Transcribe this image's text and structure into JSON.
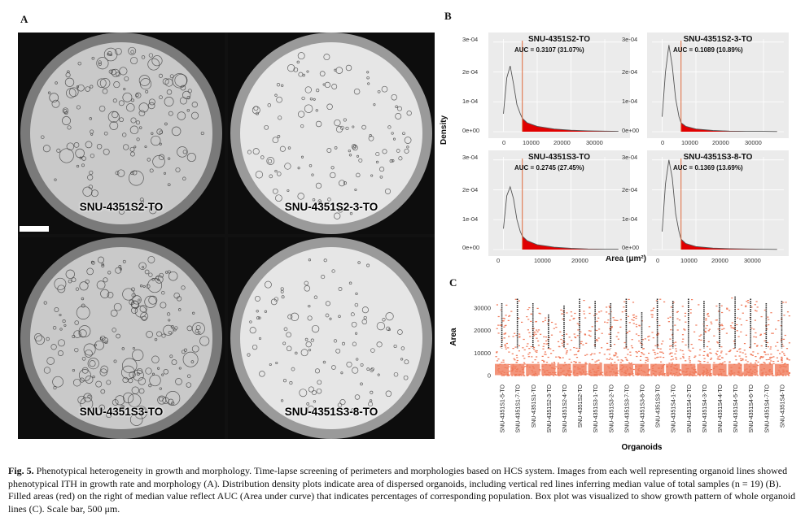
{
  "panel_letters": {
    "a": "A",
    "b": "B",
    "c": "C"
  },
  "wells": [
    {
      "label": "SNU-4351S2-TO",
      "density": 150,
      "bright": false
    },
    {
      "label": "SNU-4351S2-3-TO",
      "density": 120,
      "bright": true
    },
    {
      "label": "SNU-4351S3-TO",
      "density": 190,
      "bright": false
    },
    {
      "label": "SNU-4351S3-8-TO",
      "density": 110,
      "bright": true
    }
  ],
  "density_plots": {
    "y_label": "Density",
    "x_label": "Area (μm²)",
    "y_ticks": [
      "3e-04",
      "2e-04",
      "1e-04",
      "0e+00"
    ],
    "x_ticks": [
      "0",
      "10000",
      "20000",
      "30000"
    ],
    "plots": [
      {
        "title": "SNU-4351S2-TO",
        "auc": "AUC = 0.3107 (31.07%)"
      },
      {
        "title": "SNU-4351S2-3-TO",
        "auc": "AUC = 0.1089 (10.89%)"
      },
      {
        "title": "SNU-4351S3-TO",
        "auc": "AUC = 0.2745 (27.45%)"
      },
      {
        "title": "SNU-4351S3-8-TO",
        "auc": "AUC = 0.1369 (13.69%)"
      }
    ]
  },
  "chart_data": [
    {
      "type": "area",
      "title": "SNU-4351S2-TO",
      "annotation": "AUC = 0.3107 (31.07%)",
      "xlabel": "Area (μm²)",
      "ylabel": "Density",
      "xlim": [
        -3000,
        36000
      ],
      "ylim": [
        0,
        0.00031
      ],
      "median": 5600,
      "x": [
        0,
        1000,
        2000,
        3000,
        4000,
        5000,
        5600,
        7000,
        10000,
        15000,
        20000,
        25000,
        30000,
        34000
      ],
      "y": [
        6e-05,
        0.00018,
        0.00022,
        0.00016,
        9e-05,
        6e-05,
        4.5e-05,
        3e-05,
        1.8e-05,
        9e-06,
        5e-06,
        3e-06,
        2e-06,
        1e-06
      ]
    },
    {
      "type": "area",
      "title": "SNU-4351S2-3-TO",
      "annotation": "AUC = 0.1089 (10.89%)",
      "xlabel": "Area (μm²)",
      "ylabel": "Density",
      "xlim": [
        -3000,
        36000
      ],
      "ylim": [
        0,
        0.00031
      ],
      "median": 5600,
      "x": [
        0,
        1000,
        2000,
        3000,
        4000,
        5000,
        5600,
        7000,
        10000,
        15000,
        20000,
        25000,
        30000,
        34000
      ],
      "y": [
        5e-05,
        0.0002,
        0.00029,
        0.00022,
        0.00011,
        5e-05,
        3e-05,
        1.8e-05,
        9e-06,
        4e-06,
        2e-06,
        1e-06,
        1e-06,
        5e-07
      ]
    },
    {
      "type": "area",
      "title": "SNU-4351S3-TO",
      "annotation": "AUC = 0.2745 (27.45%)",
      "xlabel": "Area (μm²)",
      "ylabel": "Density",
      "xlim": [
        -3000,
        36000
      ],
      "ylim": [
        0,
        0.00031
      ],
      "median": 5600,
      "x": [
        0,
        1000,
        2000,
        3000,
        4000,
        5000,
        5600,
        7000,
        10000,
        15000,
        20000,
        25000,
        30000,
        34000
      ],
      "y": [
        7e-05,
        0.00018,
        0.00021,
        0.00017,
        0.0001,
        6e-05,
        4.5e-05,
        3e-05,
        1.6e-05,
        8e-06,
        4e-06,
        2e-06,
        1e-06,
        1e-06
      ]
    },
    {
      "type": "area",
      "title": "SNU-4351S3-8-TO",
      "annotation": "AUC = 0.1369 (13.69%)",
      "xlabel": "Area (μm²)",
      "ylabel": "Density",
      "xlim": [
        -3000,
        36000
      ],
      "ylim": [
        0,
        0.00031
      ],
      "median": 5600,
      "x": [
        0,
        1000,
        2000,
        3000,
        4000,
        5000,
        5600,
        7000,
        10000,
        15000,
        20000,
        25000,
        30000,
        34000
      ],
      "y": [
        6e-05,
        0.00022,
        0.0003,
        0.00024,
        0.00012,
        6e-05,
        3.5e-05,
        2e-05,
        1e-05,
        5e-06,
        3e-06,
        2e-06,
        1e-06,
        5e-07
      ]
    },
    {
      "type": "scatter",
      "title": "",
      "xlabel": "Organoids",
      "ylabel": "Area",
      "ylim": [
        -2000,
        36000
      ],
      "y_ticks": [
        0,
        10000,
        20000,
        30000
      ],
      "categories": [
        "SNU-4351S1-5-TO",
        "SNU-4351S1-7-TO",
        "SNU-4351S1-TO",
        "SNU-4351S2-3-TO",
        "SNU-4351S2-4-TO",
        "SNU-4351S2-TO",
        "SNU-4351S3-1-TO",
        "SNU-4351S3-2-TO",
        "SNU-4351S3-7-TO",
        "SNU-4351S3-8-TO",
        "SNU-4351S3-TO",
        "SNU-4351S4-1-TO",
        "SNU-4351S4-2-TO",
        "SNU-4351S4-3-TO",
        "SNU-4351S4-4-TO",
        "SNU-4351S4-5-TO",
        "SNU-4351S4-6-TO",
        "SNU-4351S4-7-TO",
        "SNU-4351S4-TO"
      ],
      "max_values": [
        32000,
        34000,
        32000,
        27000,
        31000,
        34000,
        33000,
        32000,
        34000,
        28000,
        34000,
        33000,
        34000,
        33000,
        32000,
        35000,
        34000,
        32000,
        33000
      ]
    }
  ],
  "caption": {
    "label": "Fig. 5.",
    "text": "Phenotypical heterogeneity in growth and morphology. Time-lapse screening of perimeters and morphologies based on HCS system. Images from each well representing organoid lines showed phenotypical ITH in growth rate and morphology (A). Distribution density plots indicate area of dispersed organoids, including vertical red lines inferring median value of total samples (n = 19) (B). Filled areas (red) on the right of median value reflect AUC (Area under curve) that indicates percentages of corresponding population. Box plot was visualized to show growth pattern of whole organoid lines (C). Scale bar, 500 μm."
  },
  "colors": {
    "fill_red": "#e00000",
    "median_line": "#e06a3a",
    "scatter_point": "#f07a5a",
    "whisker": "#222222",
    "panel_bg": "#ebebeb"
  }
}
